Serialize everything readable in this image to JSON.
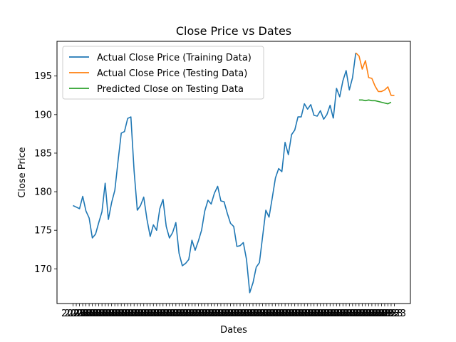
{
  "chart_data": {
    "type": "line",
    "title": "Close Price vs Dates",
    "xlabel": "Dates",
    "ylabel": "Close Price",
    "ylim": [
      165.5,
      199.5
    ],
    "yticks": [
      170,
      175,
      180,
      185,
      190,
      195
    ],
    "xtick_label": "2023",
    "legend_position": "upper-left",
    "grid": false,
    "series": [
      {
        "name": "Actual Close Price (Training Data)",
        "color": "#1f77b4",
        "x": [
          0,
          1,
          2,
          3,
          4,
          5,
          6,
          7,
          8,
          9,
          10,
          11,
          12,
          13,
          14,
          15,
          16,
          17,
          18,
          19,
          20,
          21,
          22,
          23,
          24,
          25,
          26,
          27,
          28,
          29,
          30,
          31,
          32,
          33,
          34,
          35,
          36,
          37,
          38,
          39,
          40,
          41,
          42,
          43,
          44,
          45,
          46,
          47,
          48,
          49,
          50,
          51,
          52,
          53,
          54,
          55,
          56,
          57,
          58,
          59,
          60,
          61,
          62,
          63,
          64,
          65,
          66,
          67,
          68,
          69,
          70,
          71,
          72,
          73,
          74,
          75,
          76,
          77,
          78,
          79,
          80,
          81
        ],
        "values": [
          178.2,
          178.0,
          177.8,
          179.4,
          177.5,
          176.6,
          174.0,
          174.5,
          176.0,
          177.4,
          181.1,
          176.4,
          178.6,
          180.2,
          184.0,
          187.6,
          187.8,
          189.5,
          189.7,
          182.7,
          177.6,
          178.2,
          179.3,
          176.4,
          174.2,
          175.7,
          175.0,
          177.8,
          179.0,
          175.5,
          174.0,
          174.7,
          176.0,
          172.0,
          170.4,
          170.7,
          171.2,
          173.7,
          172.4,
          173.6,
          175.0,
          177.5,
          178.9,
          178.4,
          179.8,
          180.7,
          178.8,
          178.7,
          177.2,
          175.9,
          175.5,
          172.9,
          173.0,
          173.4,
          171.2,
          166.9,
          168.2,
          170.2,
          170.8,
          174.2,
          177.6,
          176.7,
          179.2,
          181.8,
          183.0,
          182.6,
          186.4,
          184.8,
          187.4,
          188.0,
          189.7,
          189.7,
          191.4,
          190.7,
          191.3,
          189.9,
          189.8,
          190.5,
          189.4,
          190.0,
          191.2,
          189.5
        ]
      },
      {
        "name": "",
        "color": "#1f77b4",
        "x": [
          81,
          82,
          83,
          84,
          85,
          86,
          87,
          88
        ],
        "values": [
          189.5,
          193.4,
          192.3,
          194.4,
          195.7,
          193.2,
          194.8,
          198.0
        ]
      },
      {
        "name": "Actual Close Price (Testing Data)",
        "color": "#ff7f0e",
        "x": [
          88,
          89,
          90,
          91,
          92,
          93,
          94,
          95,
          96,
          97,
          98,
          99,
          100
        ],
        "values": [
          198.0,
          197.6,
          195.9,
          197.0,
          194.8,
          194.7,
          193.7,
          193.0,
          193.0,
          193.2,
          193.6,
          192.5,
          192.5
        ]
      },
      {
        "name": "Predicted Close on Testing Data",
        "color": "#2ca02c",
        "x": [
          89,
          90,
          91,
          92,
          93,
          94,
          95,
          96,
          97,
          98,
          99
        ],
        "values": [
          191.9,
          191.9,
          191.8,
          191.9,
          191.8,
          191.8,
          191.7,
          191.6,
          191.5,
          191.4,
          191.6
        ]
      }
    ]
  }
}
